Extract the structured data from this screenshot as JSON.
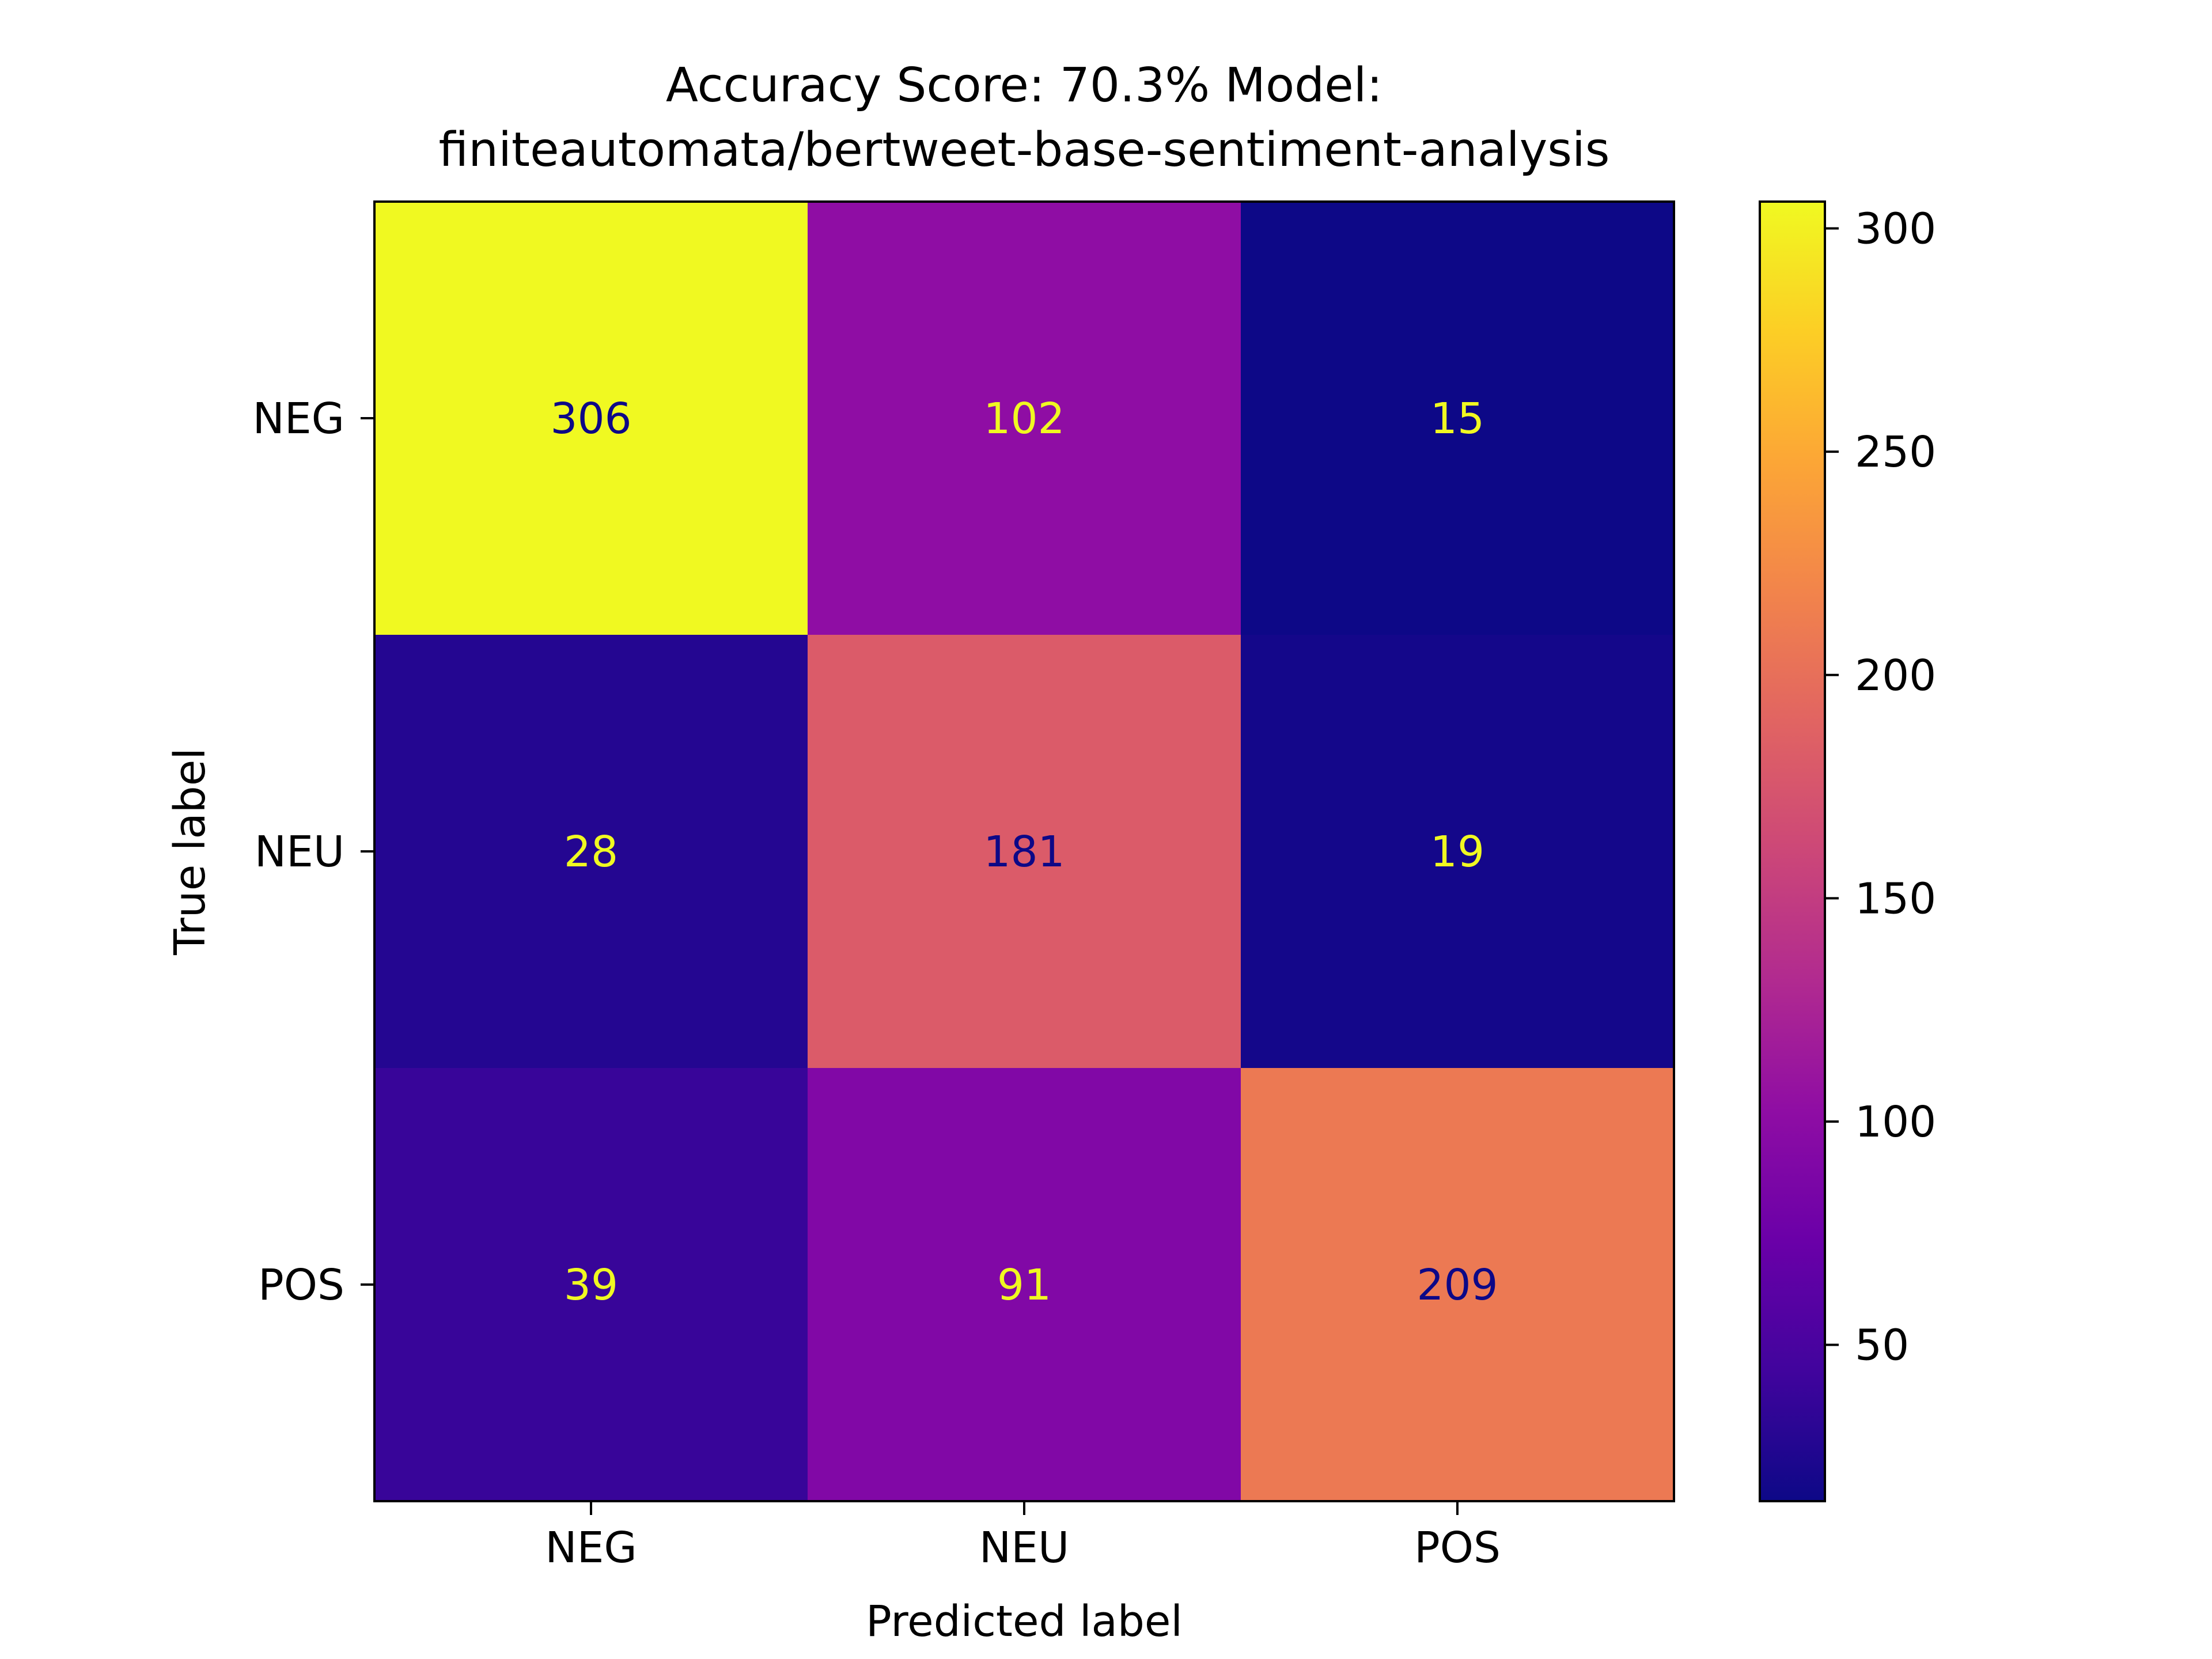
{
  "chart_data": {
    "type": "heatmap",
    "title_lines": [
      "Accuracy Score: 70.3% Model:",
      "finiteautomata/bertweet-base-sentiment-analysis"
    ],
    "xlabel": "Predicted label",
    "ylabel": "True label",
    "x_categories": [
      "NEG",
      "NEU",
      "POS"
    ],
    "y_categories": [
      "NEG",
      "NEU",
      "POS"
    ],
    "values": [
      [
        306,
        102,
        15
      ],
      [
        28,
        181,
        19
      ],
      [
        39,
        91,
        209
      ]
    ],
    "colormap": "plasma",
    "color_range": [
      15,
      306
    ],
    "colorbar_ticks": [
      "50",
      "100",
      "150",
      "200",
      "250",
      "300"
    ],
    "text_color_dark": "#0d0887",
    "text_color_light": "#f0f921"
  }
}
